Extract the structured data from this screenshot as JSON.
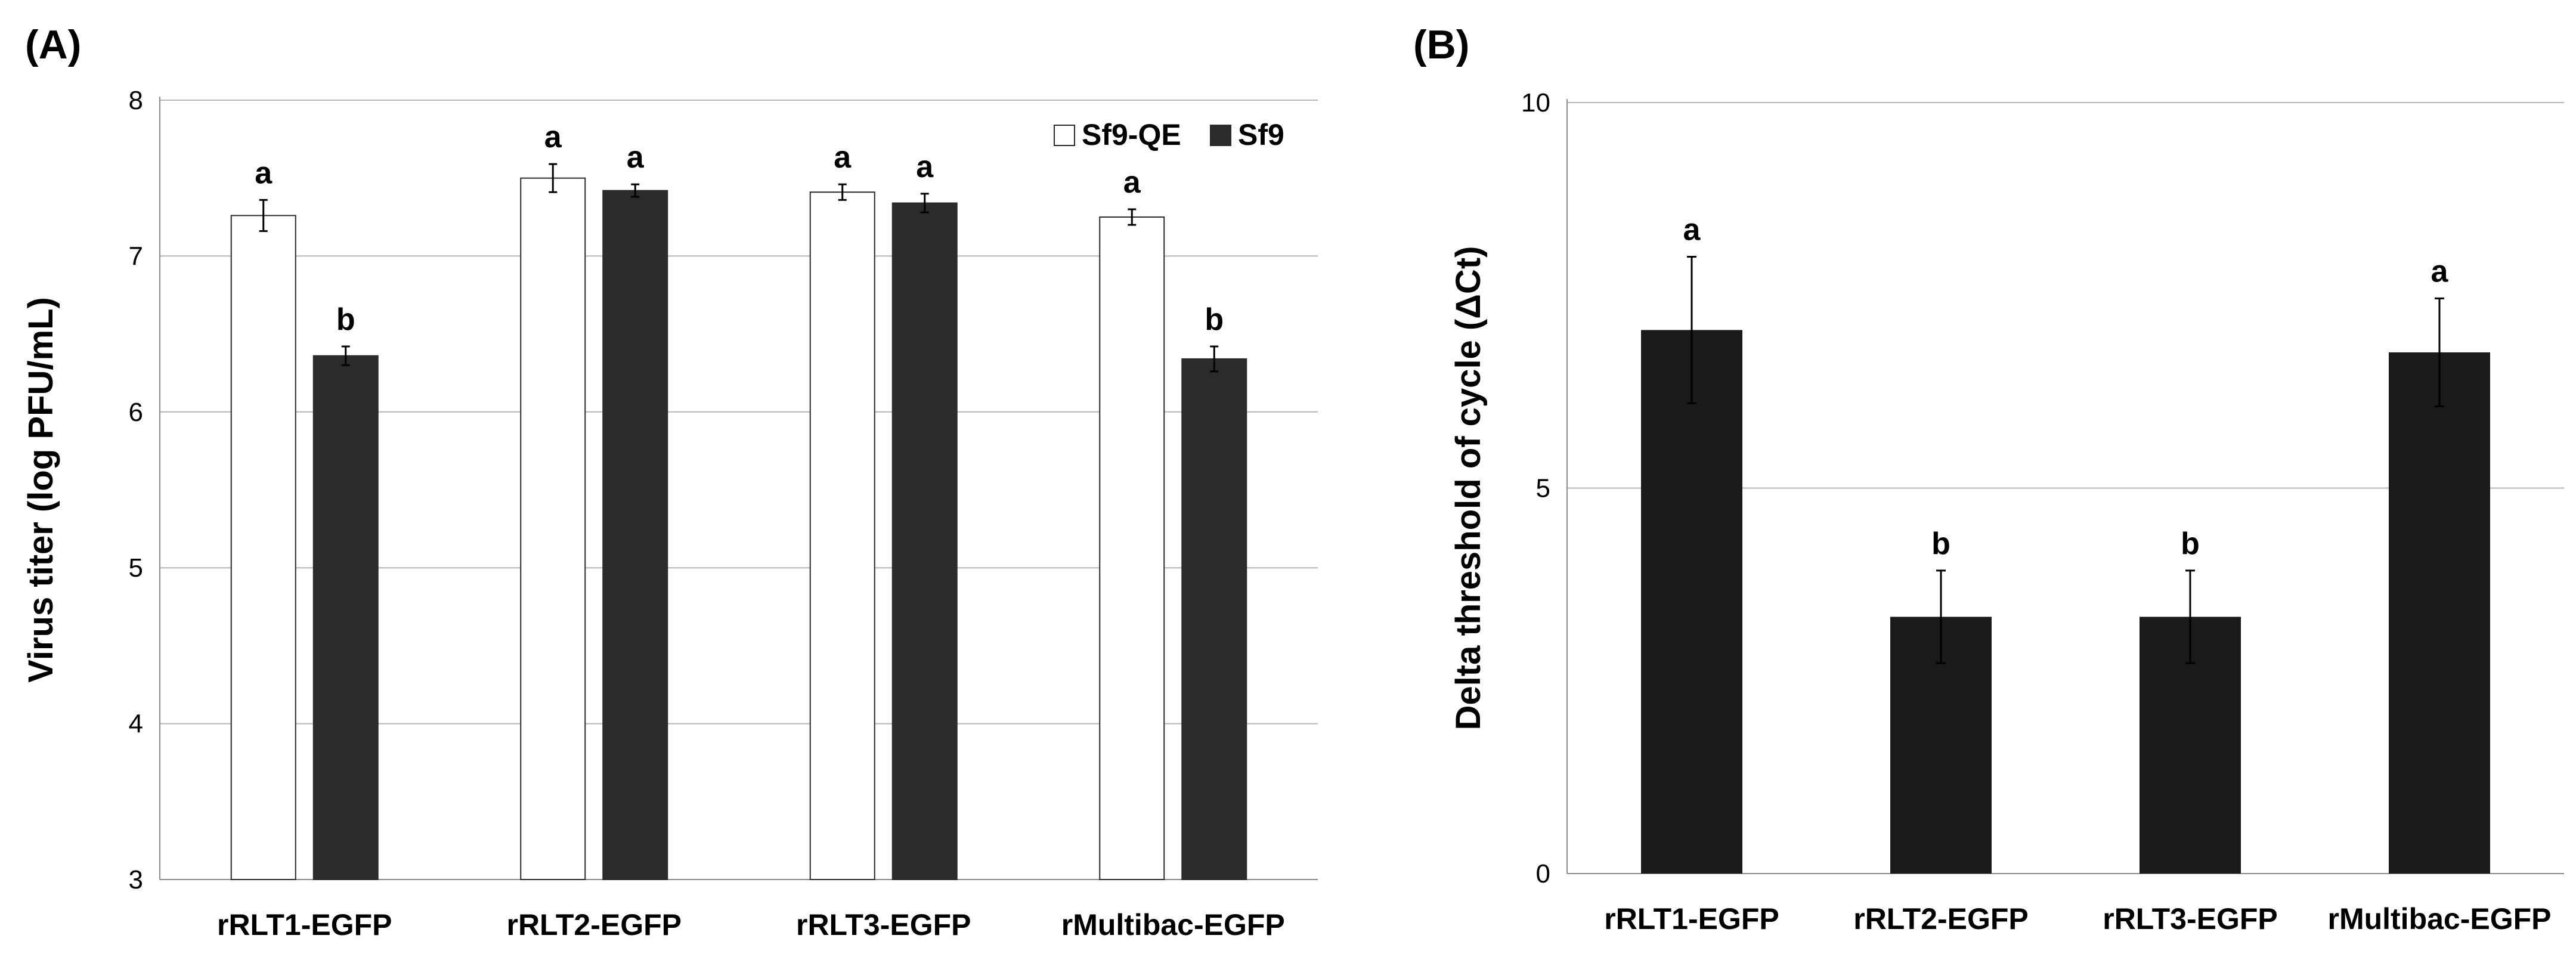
{
  "chart_data": [
    {
      "panel_label": "(A)",
      "type": "bar",
      "ylabel": "Virus titer (log PFU/mL)",
      "ylim": [
        3,
        8
      ],
      "yticks": [
        3,
        4,
        5,
        6,
        7,
        8
      ],
      "grid": true,
      "legend_position": "top-right",
      "categories": [
        "rRLT1-EGFP",
        "rRLT2-EGFP",
        "rRLT3-EGFP",
        "rMultibac-EGFP"
      ],
      "series": [
        {
          "name": "Sf9-QE",
          "color": "#ffffff",
          "values": [
            7.26,
            7.5,
            7.41,
            7.25
          ],
          "errors": [
            0.1,
            0.09,
            0.05,
            0.05
          ],
          "labels": [
            "a",
            "a",
            "a",
            "a"
          ]
        },
        {
          "name": "Sf9",
          "color": "#2b2b2b",
          "values": [
            6.36,
            7.42,
            7.34,
            6.34
          ],
          "errors": [
            0.06,
            0.04,
            0.06,
            0.08
          ],
          "labels": [
            "b",
            "a",
            "a",
            "b"
          ]
        }
      ]
    },
    {
      "panel_label": "(B)",
      "type": "bar",
      "ylabel": "Delta threshold of cycle (ΔCt)",
      "ylim": [
        0,
        10
      ],
      "yticks": [
        0,
        5,
        10
      ],
      "grid": true,
      "categories": [
        "rRLT1-EGFP",
        "rRLT2-EGFP",
        "rRLT3-EGFP",
        "rMultibac-EGFP"
      ],
      "series": [
        {
          "name": "ΔCt",
          "color": "#1a1a1a",
          "values": [
            7.05,
            3.33,
            3.33,
            6.76
          ],
          "errors": [
            0.95,
            0.6,
            0.6,
            0.7
          ],
          "labels": [
            "a",
            "b",
            "b",
            "a"
          ]
        }
      ]
    }
  ]
}
